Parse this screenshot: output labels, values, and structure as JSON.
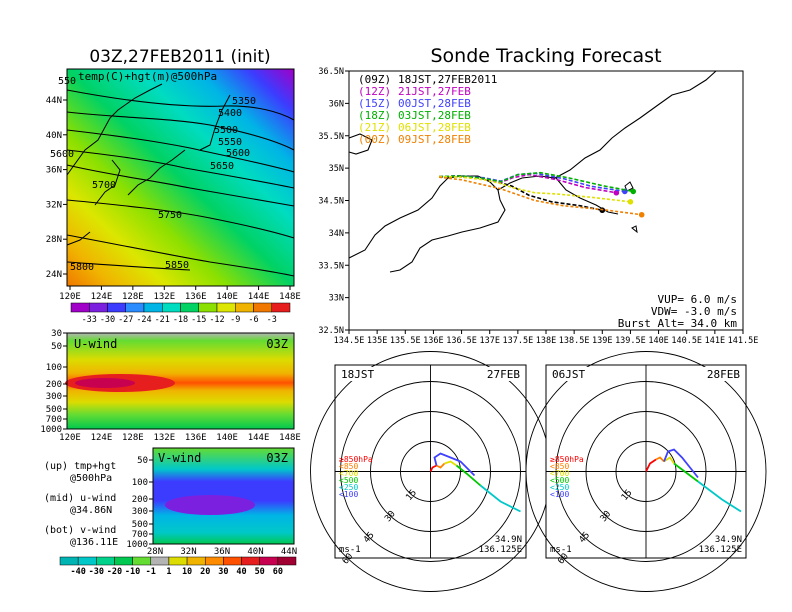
{
  "main_map": {
    "title": "03Z,27FEB2011 (init)",
    "field_label": "temp(C)+hgt(m)@500hPa",
    "lon_ticks": [
      "120E",
      "124E",
      "128E",
      "132E",
      "136E",
      "140E",
      "144E",
      "148E"
    ],
    "lat_ticks": [
      "24N",
      "28N",
      "32N",
      "36N",
      "40N",
      "44N"
    ],
    "contours": [
      "5350",
      "5400",
      "5500",
      "5550",
      "5600",
      "5650",
      "5700",
      "5750",
      "5800",
      "5850",
      "5600",
      "550"
    ],
    "colorbar_labels": [
      "-33",
      "-30",
      "-27",
      "-24",
      "-21",
      "-18",
      "-15",
      "-12",
      "-9",
      "-6",
      "-3"
    ],
    "colorbar_colors": [
      "#a000c8",
      "#7c20e0",
      "#3c3cff",
      "#2a8cff",
      "#00b4e6",
      "#00dcc0",
      "#00d264",
      "#8ce000",
      "#dce600",
      "#f0b400",
      "#f07800",
      "#e61e1e"
    ]
  },
  "uwind": {
    "title": "U-wind",
    "time": "03Z",
    "p_ticks": [
      "30",
      "50",
      "100",
      "200",
      "300",
      "500",
      "700",
      "1000"
    ],
    "lon_ticks": [
      "120E",
      "124E",
      "128E",
      "132E",
      "136E",
      "140E",
      "144E",
      "148E"
    ]
  },
  "vwind": {
    "title": "V-wind",
    "time": "03Z",
    "p_ticks": [
      "50",
      "100",
      "200",
      "300",
      "500",
      "700",
      "1000"
    ],
    "lat_ticks": [
      "28N",
      "32N",
      "36N",
      "40N",
      "44N"
    ]
  },
  "wind_colorbar": {
    "labels": [
      "-40",
      "-30",
      "-20",
      "-10",
      "-1",
      "1",
      "10",
      "20",
      "30",
      "40",
      "50",
      "60"
    ],
    "colors": [
      "#00b4b4",
      "#00c8c8",
      "#00d28c",
      "#00c850",
      "#64dc32",
      "#b4b4b4",
      "#dcdc00",
      "#f0b400",
      "#ff8c00",
      "#ff5000",
      "#e61e1e",
      "#c80050",
      "#a00032"
    ]
  },
  "notes": {
    "up1": "(up)  tmp+hgt",
    "up2": "@500hPa",
    "mid1": "(mid)  u-wind",
    "mid2": "@34.86N",
    "bot1": "(bot)  v-wind",
    "bot2": "@136.11E"
  },
  "tracking": {
    "title": "Sonde Tracking Forecast",
    "lon_ticks": [
      "134.5E",
      "135E",
      "135.5E",
      "136E",
      "136.5E",
      "137E",
      "137.5E",
      "138E",
      "138.5E",
      "139E",
      "139.5E",
      "140E",
      "140.5E",
      "141E",
      "141.5E"
    ],
    "lat_ticks": [
      "32.5N",
      "33N",
      "33.5N",
      "34N",
      "34.5N",
      "35N",
      "35.5N",
      "36N",
      "36.5N"
    ],
    "legend": [
      {
        "code": "(09Z)",
        "time": "18JST,27FEB2011",
        "color": "#000000"
      },
      {
        "code": "(12Z)",
        "time": "21JST,27FEB",
        "color": "#c000c0"
      },
      {
        "code": "(15Z)",
        "time": "00JST,28FEB",
        "color": "#4040ff"
      },
      {
        "code": "(18Z)",
        "time": "03JST,28FEB",
        "color": "#00b000"
      },
      {
        "code": "(21Z)",
        "time": "06JST,28FEB",
        "color": "#e0e000"
      },
      {
        "code": "(00Z)",
        "time": "09JST,28FEB",
        "color": "#f08000"
      }
    ],
    "params": [
      "VUP=  6.0  m/s",
      "VDW=  -3.0  m/s",
      "Burst Alt=  34.0  km"
    ]
  },
  "hodo_left": {
    "time": "18JST",
    "date": "27FEB",
    "ring_labels": [
      "15",
      "30",
      "45",
      "60"
    ],
    "legend": [
      {
        "label": "≥850hPa",
        "color": "#ff0000"
      },
      {
        "label": "<850",
        "color": "#ff8000"
      },
      {
        "label": "<700",
        "color": "#e0e000"
      },
      {
        "label": "<500",
        "color": "#00c800"
      },
      {
        "label": "<250",
        "color": "#00c8c8"
      },
      {
        "label": "<100",
        "color": "#4040ff"
      }
    ],
    "unit": "ms-1",
    "loc1": "34.9N",
    "loc2": "136.125E"
  },
  "hodo_right": {
    "time": "06JST",
    "date": "28FEB",
    "ring_labels": [
      "15",
      "30",
      "45",
      "60"
    ],
    "legend": [
      {
        "label": "≥850hPa",
        "color": "#ff0000"
      },
      {
        "label": "<850",
        "color": "#ff8000"
      },
      {
        "label": "<700",
        "color": "#e0e000"
      },
      {
        "label": "<500",
        "color": "#00c800"
      },
      {
        "label": "<250",
        "color": "#00c8c8"
      },
      {
        "label": "<100",
        "color": "#4040ff"
      }
    ],
    "unit": "ms-1",
    "loc1": "34.9N",
    "loc2": "136.125E"
  },
  "chart_data": {
    "type": "line",
    "title": "Sonde Tracking Forecast",
    "xlabel": "",
    "ylabel": "",
    "xlim": [
      134.5,
      141.5
    ],
    "ylim": [
      32.5,
      36.5
    ],
    "series": [
      {
        "name": "(09Z) 18JST,27FEB2011",
        "x": [
          136.1,
          136.4,
          136.8,
          137.1,
          137.4,
          137.7,
          138.1,
          138.6,
          139.0
        ],
        "y": [
          34.86,
          34.88,
          34.85,
          34.8,
          34.72,
          34.58,
          34.48,
          34.42,
          34.35
        ]
      },
      {
        "name": "(12Z) 21JST,27FEB",
        "x": [
          136.1,
          136.5,
          136.9,
          137.2,
          137.4,
          137.7,
          138.2,
          138.7,
          139.25
        ],
        "y": [
          34.87,
          34.88,
          34.84,
          34.78,
          34.85,
          34.9,
          34.82,
          34.7,
          34.62
        ]
      },
      {
        "name": "(15Z) 00JST,28FEB",
        "x": [
          136.1,
          136.5,
          136.9,
          137.2,
          137.5,
          137.8,
          138.3,
          138.8,
          139.4
        ],
        "y": [
          34.87,
          34.88,
          34.85,
          34.8,
          34.9,
          34.92,
          34.84,
          34.72,
          34.64
        ]
      },
      {
        "name": "(18Z) 03JST,28FEB",
        "x": [
          136.1,
          136.5,
          136.9,
          137.2,
          137.5,
          137.9,
          138.4,
          139.0,
          139.55
        ],
        "y": [
          34.87,
          34.88,
          34.84,
          34.79,
          34.9,
          34.93,
          34.85,
          34.73,
          34.64
        ]
      },
      {
        "name": "(21Z) 06JST,28FEB",
        "x": [
          136.1,
          136.5,
          136.9,
          137.2,
          137.4,
          137.8,
          138.2,
          138.8,
          139.5
        ],
        "y": [
          34.87,
          34.86,
          34.82,
          34.76,
          34.7,
          34.62,
          34.6,
          34.55,
          34.48
        ]
      },
      {
        "name": "(00Z) 09JST,28FEB",
        "x": [
          136.1,
          136.5,
          136.9,
          137.2,
          137.4,
          137.8,
          138.3,
          139.0,
          139.7
        ],
        "y": [
          34.86,
          34.82,
          34.74,
          34.68,
          34.62,
          34.5,
          34.42,
          34.36,
          34.28
        ]
      }
    ]
  }
}
